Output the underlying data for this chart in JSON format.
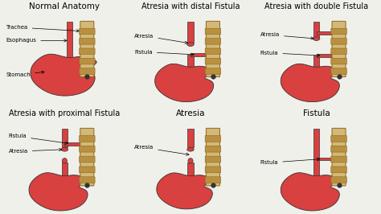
{
  "background_color": "#f0f0eb",
  "title_fontsize": 7.5,
  "label_fontsize": 5.0,
  "stomach_color": "#d94040",
  "esophagus_color": "#d94040",
  "trachea_color": "#d4b878",
  "trachea_ring_color": "#b89040",
  "trachea_dark": "#8a6820",
  "panels": [
    {
      "title": "Normal Anatomy",
      "col": 0,
      "row": 0
    },
    {
      "title": "Atresia with distal Fistula",
      "col": 1,
      "row": 0
    },
    {
      "title": "Atresia with double Fistula",
      "col": 2,
      "row": 0
    },
    {
      "title": "Atresia with proximal Fistula",
      "col": 0,
      "row": 1
    },
    {
      "title": "Atresia",
      "col": 1,
      "row": 1
    },
    {
      "title": "Fistula",
      "col": 2,
      "row": 1
    }
  ]
}
